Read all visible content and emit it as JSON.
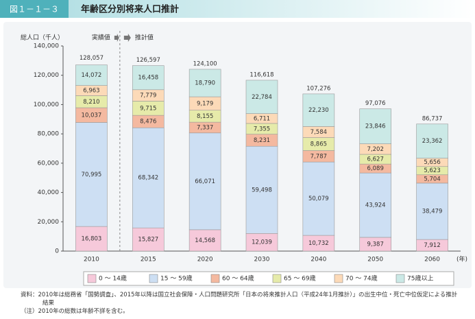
{
  "chart_data": {
    "type": "bar",
    "stacked": true,
    "figure_label": "図１－１－３",
    "title": "年齢区分別将来人口推計",
    "ylabel": "総人口（千人）",
    "xlabel": "(年)",
    "annotations": [
      "実績値",
      "推計値"
    ],
    "categories": [
      "2010",
      "2015",
      "2020",
      "2030",
      "2040",
      "2050",
      "2060"
    ],
    "series": [
      {
        "name": "0 ～ 14歳",
        "color": "#f6c9da",
        "values": [
          16803,
          15827,
          14568,
          12039,
          10732,
          9387,
          7912
        ],
        "value_labels": [
          "16,803",
          "15,827",
          "14,568",
          "12,039",
          "10,732",
          "9,387",
          "7,912"
        ]
      },
      {
        "name": "15 ～ 59歳",
        "color": "#cddff3",
        "values": [
          70995,
          68342,
          66071,
          59498,
          50079,
          43924,
          38479
        ],
        "value_labels": [
          "70,995",
          "68,342",
          "66,071",
          "59,498",
          "50,079",
          "43,924",
          "38,479"
        ]
      },
      {
        "name": "60 ～ 64歳",
        "color": "#f4b9a0",
        "values": [
          10037,
          8476,
          7337,
          8231,
          7787,
          6089,
          5704
        ],
        "value_labels": [
          "10,037",
          "8,476",
          "7,337",
          "8,231",
          "7,787",
          "6,089",
          "5,704"
        ]
      },
      {
        "name": "65 ～ 69歳",
        "color": "#e6ebaa",
        "values": [
          8210,
          9715,
          8155,
          7355,
          8865,
          6627,
          5623
        ],
        "value_labels": [
          "8,210",
          "9,715",
          "8,155",
          "7,355",
          "8,865",
          "6,627",
          "5,623"
        ]
      },
      {
        "name": "70 ～ 74歳",
        "color": "#fcdab8",
        "values": [
          6963,
          7779,
          9179,
          6711,
          7584,
          7202,
          5656
        ],
        "value_labels": [
          "6,963",
          "7,779",
          "9,179",
          "6,711",
          "7,584",
          "7,202",
          "5,656"
        ]
      },
      {
        "name": "75歳以上",
        "color": "#cbe9e6",
        "values": [
          14072,
          16458,
          18790,
          22784,
          22230,
          23846,
          23362
        ],
        "value_labels": [
          "14,072",
          "16,458",
          "18,790",
          "22,784",
          "22,230",
          "23,846",
          "23,362"
        ]
      }
    ],
    "totals": {
      "values": [
        128057,
        126597,
        124100,
        116618,
        107276,
        97076,
        86737
      ],
      "value_labels": [
        "128,057",
        "126,597",
        "124,100",
        "116,618",
        "107,276",
        "97,076",
        "86,737"
      ]
    },
    "ylim": [
      0,
      140000
    ],
    "yticks": [
      0,
      {
        "value": 20000,
        "label": "20,000"
      },
      {
        "value": 40000,
        "label": "40,000"
      },
      {
        "value": 60000,
        "label": "60,000"
      },
      {
        "value": 80000,
        "label": "80,000"
      },
      {
        "value": 100000,
        "label": "100,000"
      },
      {
        "value": 120000,
        "label": "120,000"
      },
      {
        "value": 140000,
        "label": "140,000"
      }
    ],
    "grid": false,
    "notes": [
      "資料：2010年は総務省「国勢調査」、2015年以降は国立社会保障・人口問題研究所「日本の将来推計人口（平成24年1月推計）」の出生中位・死亡中位仮定による推計結果",
      "（注）2010年の総数は年齢不詳を含む。"
    ]
  }
}
